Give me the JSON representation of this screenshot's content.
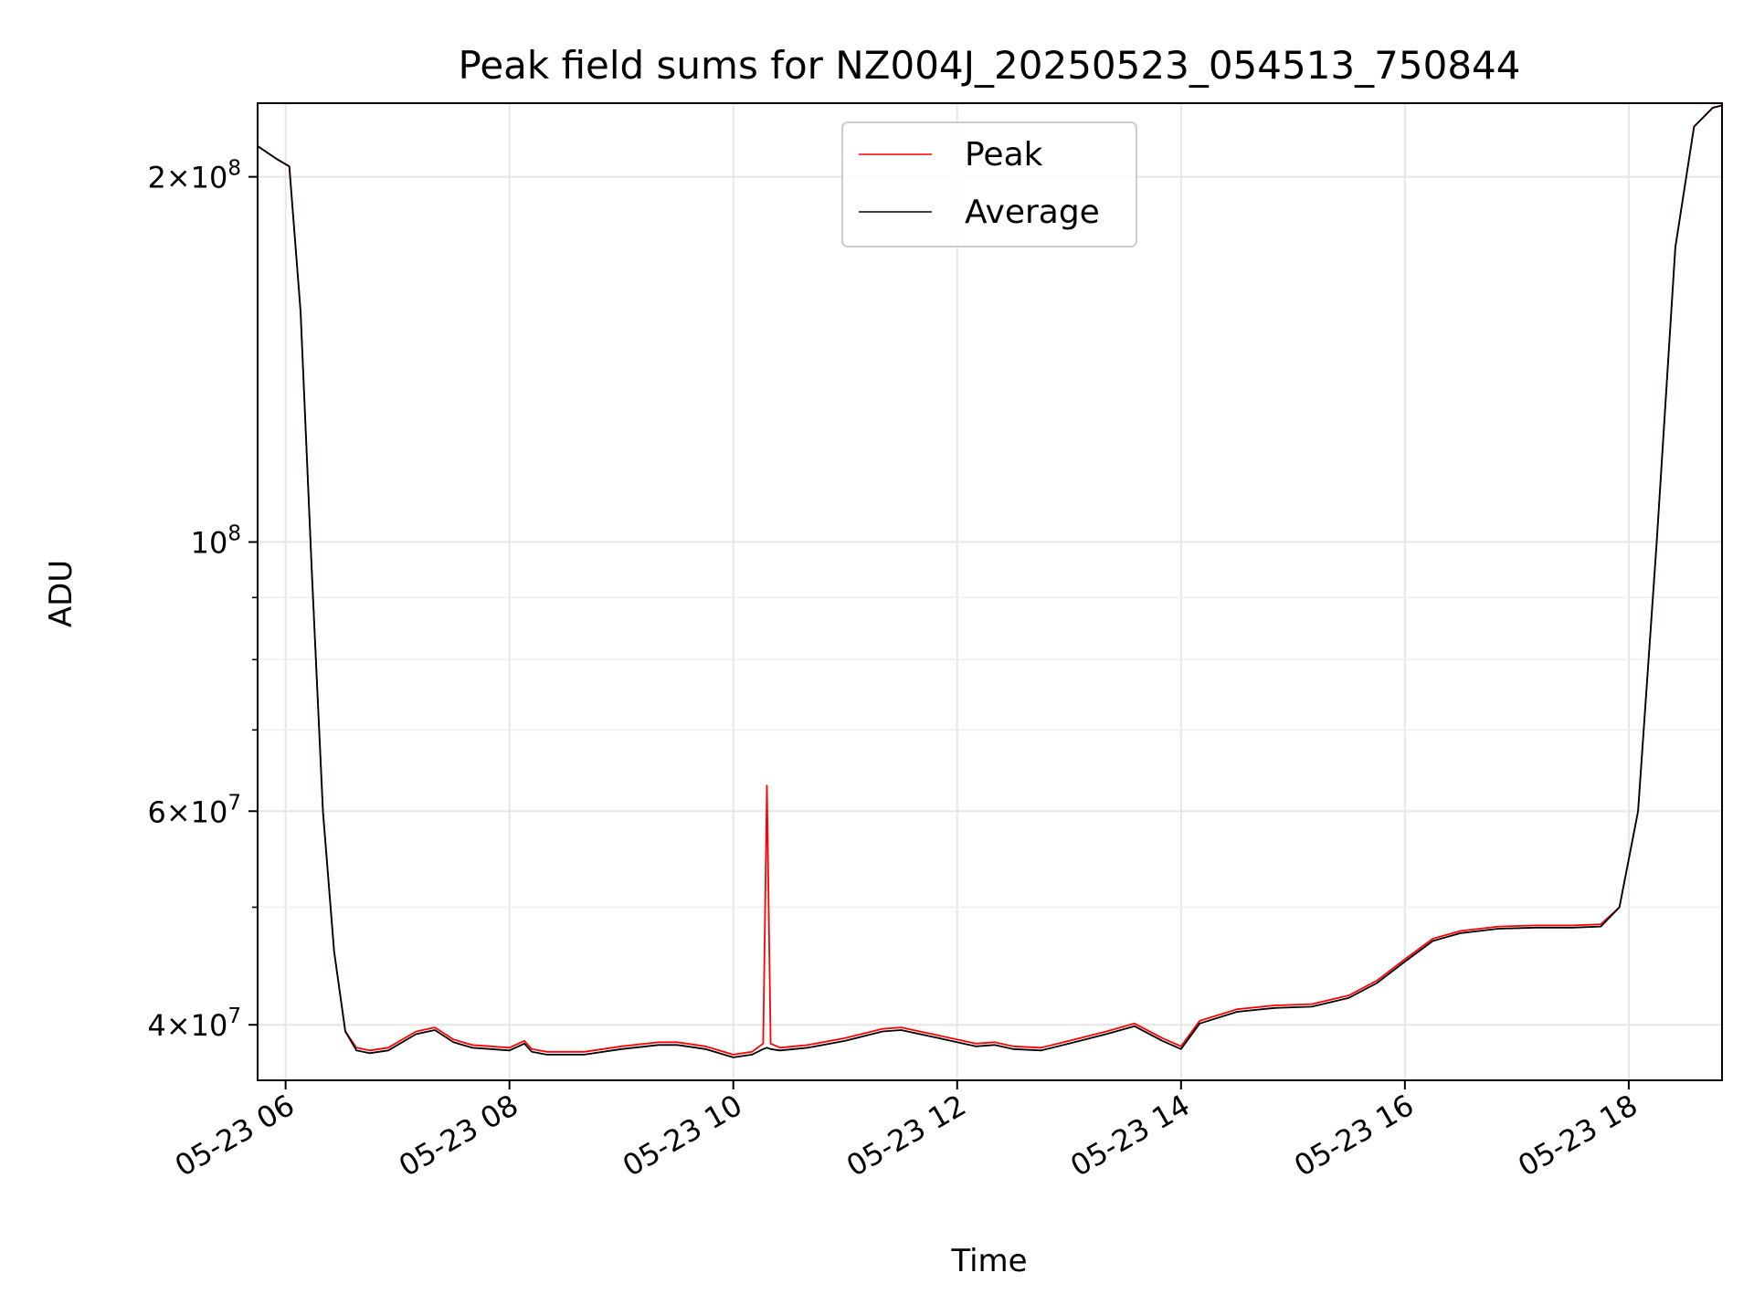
{
  "chart_data": {
    "type": "line",
    "title": "Peak field sums for NZ004J_20250523_054513_750844",
    "xlabel": "Time",
    "ylabel": "ADU",
    "yscale": "log",
    "xlim": [
      "05-23 05:45",
      "05-23 18:50"
    ],
    "ylim": [
      36000000,
      230000000
    ],
    "grid": true,
    "legend_position": "top-center",
    "x_ticks": [
      {
        "t": "05-23 06:00",
        "label": "05-23 06"
      },
      {
        "t": "05-23 08:00",
        "label": "05-23 08"
      },
      {
        "t": "05-23 10:00",
        "label": "05-23 10"
      },
      {
        "t": "05-23 12:00",
        "label": "05-23 12"
      },
      {
        "t": "05-23 14:00",
        "label": "05-23 14"
      },
      {
        "t": "05-23 16:00",
        "label": "05-23 16"
      },
      {
        "t": "05-23 18:00",
        "label": "05-23 18"
      }
    ],
    "y_major_ticks": [
      {
        "value": 40000000,
        "mant": "4",
        "exp": "7"
      },
      {
        "value": 60000000,
        "mant": "6",
        "exp": "7"
      },
      {
        "value": 100000000,
        "mant": "",
        "exp": "8"
      },
      {
        "value": 200000000,
        "mant": "2",
        "exp": "8"
      }
    ],
    "y_minor_ticks": [
      50000000,
      70000000,
      80000000,
      90000000
    ],
    "series": [
      {
        "name": "Peak",
        "color": "#ff0000",
        "x": [
          "05-23 05:45",
          "05-23 05:55",
          "05-23 06:02",
          "05-23 06:08",
          "05-23 06:14",
          "05-23 06:20",
          "05-23 06:26",
          "05-23 06:32",
          "05-23 06:38",
          "05-23 06:45",
          "05-23 06:55",
          "05-23 07:10",
          "05-23 07:20",
          "05-23 07:30",
          "05-23 07:40",
          "05-23 07:50",
          "05-23 08:00",
          "05-23 08:08",
          "05-23 08:12",
          "05-23 08:20",
          "05-23 08:40",
          "05-23 09:00",
          "05-23 09:20",
          "05-23 09:30",
          "05-23 09:45",
          "05-23 10:00",
          "05-23 10:10",
          "05-23 10:16",
          "05-23 10:18",
          "05-23 10:20",
          "05-23 10:25",
          "05-23 10:40",
          "05-23 11:00",
          "05-23 11:20",
          "05-23 11:30",
          "05-23 11:50",
          "05-23 12:10",
          "05-23 12:20",
          "05-23 12:30",
          "05-23 12:45",
          "05-23 13:00",
          "05-23 13:20",
          "05-23 13:35",
          "05-23 13:50",
          "05-23 14:00",
          "05-23 14:10",
          "05-23 14:30",
          "05-23 14:50",
          "05-23 15:10",
          "05-23 15:30",
          "05-23 15:45",
          "05-23 16:00",
          "05-23 16:15",
          "05-23 16:30",
          "05-23 16:50",
          "05-23 17:10",
          "05-23 17:30",
          "05-23 17:45",
          "05-23 17:55",
          "05-23 18:05",
          "05-23 18:15",
          "05-23 18:25",
          "05-23 18:35",
          "05-23 18:45",
          "05-23 18:50"
        ],
        "y": [
          212000000,
          207000000,
          204000000,
          155000000,
          95000000,
          60000000,
          46000000,
          39500000,
          38300000,
          38100000,
          38300000,
          39500000,
          39800000,
          38900000,
          38500000,
          38400000,
          38300000,
          38800000,
          38200000,
          38000000,
          38000000,
          38400000,
          38700000,
          38700000,
          38400000,
          37800000,
          38000000,
          38600000,
          63000000,
          38600000,
          38300000,
          38500000,
          39000000,
          39700000,
          39800000,
          39200000,
          38600000,
          38700000,
          38400000,
          38300000,
          38800000,
          39500000,
          40100000,
          39000000,
          38400000,
          40300000,
          41200000,
          41500000,
          41600000,
          42300000,
          43500000,
          45300000,
          47100000,
          47800000,
          48200000,
          48300000,
          48300000,
          48400000,
          50000000,
          60000000,
          100000000,
          175000000,
          220000000,
          228000000,
          229000000
        ]
      },
      {
        "name": "Average",
        "color": "#000000",
        "x": [
          "05-23 05:45",
          "05-23 05:55",
          "05-23 06:02",
          "05-23 06:08",
          "05-23 06:14",
          "05-23 06:20",
          "05-23 06:26",
          "05-23 06:32",
          "05-23 06:38",
          "05-23 06:45",
          "05-23 06:55",
          "05-23 07:10",
          "05-23 07:20",
          "05-23 07:30",
          "05-23 07:40",
          "05-23 07:50",
          "05-23 08:00",
          "05-23 08:08",
          "05-23 08:12",
          "05-23 08:20",
          "05-23 08:40",
          "05-23 09:00",
          "05-23 09:20",
          "05-23 09:30",
          "05-23 09:45",
          "05-23 10:00",
          "05-23 10:10",
          "05-23 10:16",
          "05-23 10:18",
          "05-23 10:20",
          "05-23 10:25",
          "05-23 10:40",
          "05-23 11:00",
          "05-23 11:20",
          "05-23 11:30",
          "05-23 11:50",
          "05-23 12:10",
          "05-23 12:20",
          "05-23 12:30",
          "05-23 12:45",
          "05-23 13:00",
          "05-23 13:20",
          "05-23 13:35",
          "05-23 13:50",
          "05-23 14:00",
          "05-23 14:10",
          "05-23 14:30",
          "05-23 14:50",
          "05-23 15:10",
          "05-23 15:30",
          "05-23 15:45",
          "05-23 16:00",
          "05-23 16:15",
          "05-23 16:30",
          "05-23 16:50",
          "05-23 17:10",
          "05-23 17:30",
          "05-23 17:45",
          "05-23 17:55",
          "05-23 18:05",
          "05-23 18:15",
          "05-23 18:25",
          "05-23 18:35",
          "05-23 18:45",
          "05-23 18:50"
        ],
        "y": [
          212000000,
          207000000,
          204000000,
          155000000,
          95000000,
          60000000,
          46000000,
          39500000,
          38100000,
          37900000,
          38100000,
          39300000,
          39600000,
          38700000,
          38300000,
          38200000,
          38100000,
          38600000,
          38000000,
          37800000,
          37800000,
          38200000,
          38500000,
          38500000,
          38200000,
          37600000,
          37800000,
          38200000,
          38300000,
          38200000,
          38100000,
          38300000,
          38800000,
          39500000,
          39600000,
          39000000,
          38400000,
          38500000,
          38200000,
          38100000,
          38600000,
          39300000,
          39900000,
          38800000,
          38200000,
          40100000,
          41000000,
          41300000,
          41400000,
          42100000,
          43300000,
          45100000,
          46900000,
          47600000,
          48000000,
          48100000,
          48100000,
          48200000,
          50000000,
          60000000,
          100000000,
          175000000,
          220000000,
          228000000,
          229000000
        ]
      }
    ]
  }
}
